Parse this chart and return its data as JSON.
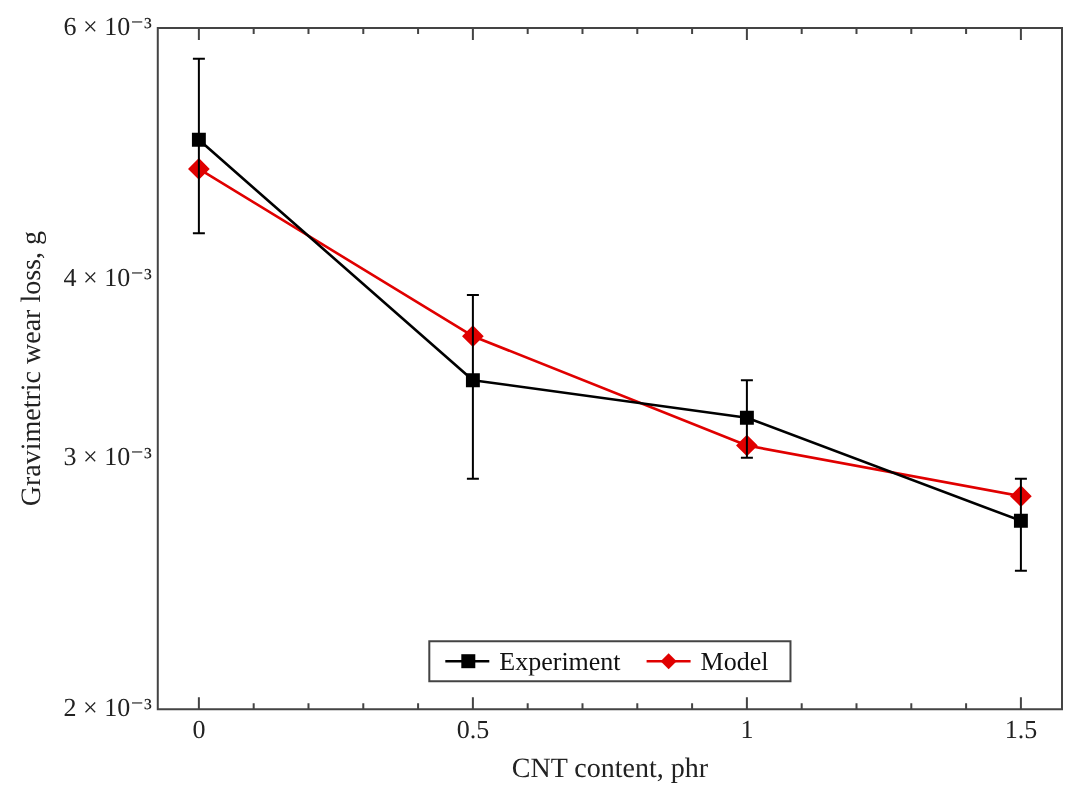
{
  "chart_data": {
    "type": "line",
    "xlabel": "CNT content, phr",
    "ylabel": "Gravimetric wear loss, g",
    "x": [
      0,
      0.5,
      1,
      1.5
    ],
    "series": [
      {
        "name": "Experiment",
        "color": "#000000",
        "marker": "square",
        "values": [
          0.00501,
          0.0034,
          0.0032,
          0.00271
        ],
        "errors": [
          [
            0.00431,
            0.00571
          ],
          [
            0.0029,
            0.0039
          ],
          [
            0.003,
            0.0034
          ],
          [
            0.0025,
            0.0029
          ]
        ]
      },
      {
        "name": "Model",
        "color": "#e00000",
        "marker": "diamond",
        "values": [
          0.00478,
          0.00365,
          0.00306,
          0.00282
        ]
      }
    ],
    "log": "y",
    "xlim": [
      -0.075,
      1.575
    ],
    "ylim": [
      0.002,
      0.006
    ],
    "xticks": [
      0,
      {
        "value": 0.1,
        "label": null
      },
      {
        "value": 0.2,
        "label": null
      },
      {
        "value": 0.3,
        "label": null
      },
      {
        "value": 0.4,
        "label": null
      },
      0.5,
      {
        "value": 0.6,
        "label": null
      },
      {
        "value": 0.7,
        "label": null
      },
      {
        "value": 0.8,
        "label": null
      },
      {
        "value": 0.9,
        "label": null
      },
      1,
      {
        "value": 1.1,
        "label": null
      },
      {
        "value": 1.2,
        "label": null
      },
      {
        "value": 1.3,
        "label": null
      },
      {
        "value": 1.4,
        "label": null
      },
      1.5
    ],
    "yticks": [
      {
        "value": 0.002,
        "label": "2 × 10⁻³"
      },
      {
        "value": 0.003,
        "label": "3 × 10⁻³"
      },
      {
        "value": 0.004,
        "label": "4 × 10⁻³"
      },
      {
        "value": 0.006,
        "label": "6 × 10⁻³"
      }
    ],
    "legend": "bottom",
    "grid": false
  }
}
